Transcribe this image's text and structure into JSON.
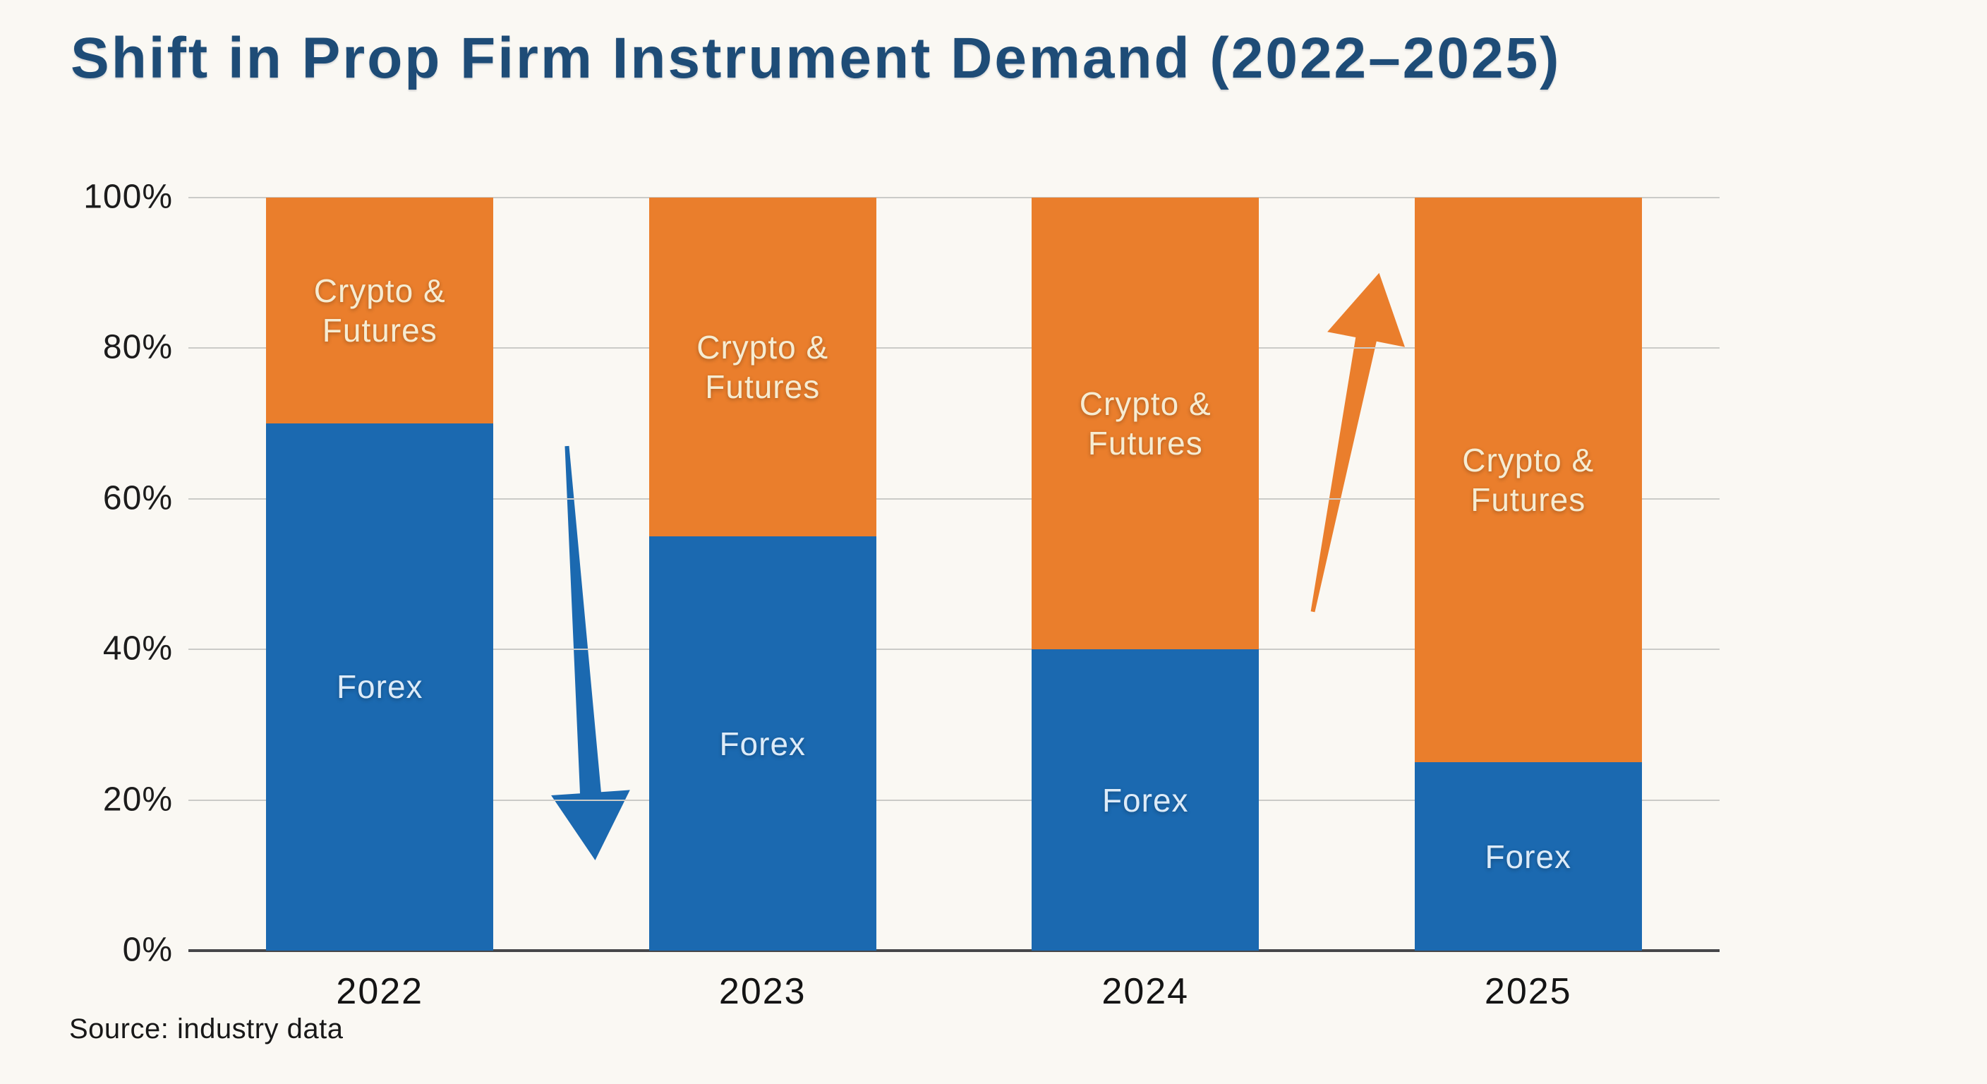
{
  "title": "Shift in Prop Firm Instrument Demand (2022–2025)",
  "source_note": "Source: industry data",
  "colors": {
    "background": "#faf8f3",
    "title_text": "#1e4c77",
    "gridline": "#cbcbc8",
    "axis_line": "#47474a",
    "tick_text": "#1c1c1c",
    "forex_blue": "#1b69b0",
    "crypto_orange": "#ea7e2c"
  },
  "chart_data": {
    "type": "bar",
    "stacked": true,
    "title": "Shift in Prop Firm Instrument Demand (2022–2025)",
    "categories": [
      "2022",
      "2023",
      "2024",
      "2025"
    ],
    "series": [
      {
        "name": "Forex",
        "color": "#1b69b0",
        "label_color": "#ddebf8",
        "values": [
          70,
          55,
          40,
          25
        ]
      },
      {
        "name": "Crypto & Futures",
        "color": "#ea7e2c",
        "label_color": "#f6ecd2",
        "values": [
          30,
          45,
          60,
          75
        ]
      }
    ],
    "yticks": [
      "0%",
      "20%",
      "40%",
      "60%",
      "80%",
      "100%"
    ],
    "ylim": [
      0,
      100
    ],
    "grid": true,
    "legend": "none",
    "annotations": [
      {
        "type": "trend-arrow",
        "direction": "down",
        "color": "#1b69b0",
        "between": [
          "2022",
          "2023"
        ],
        "y_tail_pct": 67,
        "y_tip_pct": 12,
        "tail_dx": -6,
        "tip_dx": 34
      },
      {
        "type": "trend-arrow",
        "direction": "up",
        "color": "#ea7e2c",
        "between": [
          "2024",
          "2025"
        ],
        "y_tail_pct": 45,
        "y_tip_pct": 90,
        "tail_dx": -34,
        "tip_dx": 60
      }
    ]
  }
}
